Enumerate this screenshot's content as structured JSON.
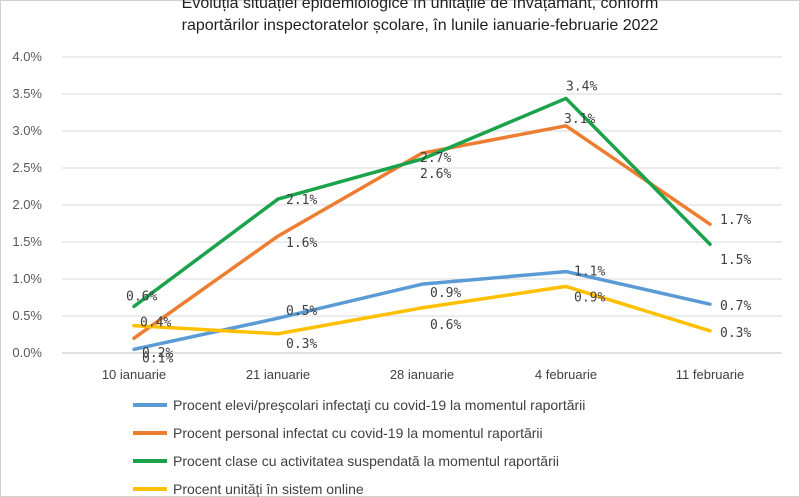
{
  "chart_data": {
    "type": "line",
    "title_lines": [
      "Evoluția situației epidemiologice în unitățile de învățământ, conform",
      "raportărilor inspectoratelor școlare, în lunile ianuarie-februarie 2022"
    ],
    "categories": [
      "10 ianuarie",
      "21 ianuarie",
      "28 ianuarie",
      "4 februarie",
      "11 februarie"
    ],
    "y_ticks": [
      "0.0%",
      "0.5%",
      "1.0%",
      "1.5%",
      "2.0%",
      "2.5%",
      "3.0%",
      "3.5%",
      "4.0%"
    ],
    "ylim": [
      0,
      4
    ],
    "grid": true,
    "legend_position": "bottom",
    "series": [
      {
        "name": "Procent elevi/preşcolari infectaţi cu covid-19 la momentul raportării",
        "color": "#5b9bd5",
        "values": [
          0.05,
          0.47,
          0.93,
          1.1,
          0.66
        ],
        "labels": [
          "0.1%",
          "0.5%",
          "0.9%",
          "1.1%",
          "0.7%"
        ]
      },
      {
        "name": "Procent personal infectat cu covid-19 la momentul raportării",
        "color": "#ed7d31",
        "values": [
          0.2,
          1.58,
          2.7,
          3.07,
          1.74
        ],
        "labels": [
          "0.2%",
          "1.6%",
          "2.7%",
          "3.1%",
          "1.7%"
        ]
      },
      {
        "name": "Procent clase cu activitatea suspendată la momentul raportării",
        "color": "#1aa34a",
        "values": [
          0.63,
          2.08,
          2.62,
          3.44,
          1.47
        ],
        "labels": [
          "0.6%",
          "2.1%",
          "2.6%",
          "3.4%",
          "1.5%"
        ]
      },
      {
        "name": "Procent unități în sistem online",
        "color": "#ffc000",
        "values": [
          0.37,
          0.26,
          0.61,
          0.9,
          0.3
        ],
        "labels": [
          "0.4%",
          "0.3%",
          "0.6%",
          "0.9%",
          "0.3%"
        ]
      }
    ]
  }
}
